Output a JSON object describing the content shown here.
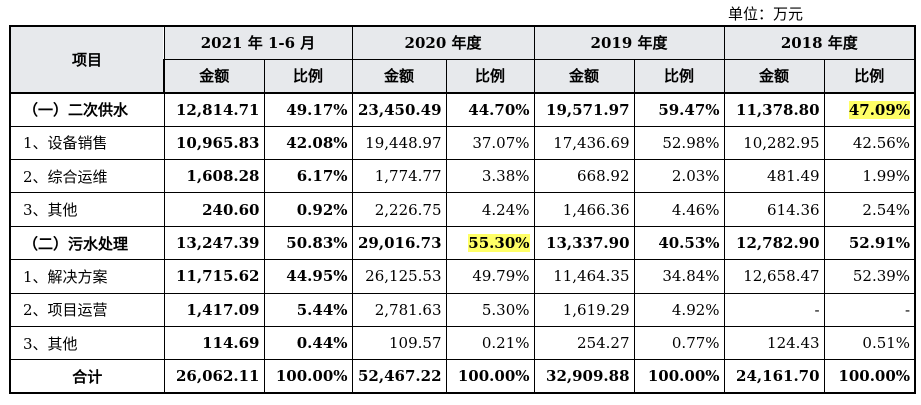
{
  "unit": "单位：万元",
  "header": {
    "item": "项目",
    "periods": [
      "2021 年 1-6 月",
      "2020 年度",
      "2019 年度",
      "2018 年度"
    ],
    "amount": "金额",
    "ratio": "比例"
  },
  "rows": [
    {
      "label": "（一）二次供水",
      "cells": [
        "12,814.71",
        "49.17%",
        "23,450.49",
        "44.70%",
        "19,571.97",
        "59.47%",
        "11,378.80",
        "47.09%"
      ]
    },
    {
      "label": "1、设备销售",
      "cells": [
        "10,965.83",
        "42.08%",
        "19,448.97",
        "37.07%",
        "17,436.69",
        "52.98%",
        "10,282.95",
        "42.56%"
      ]
    },
    {
      "label": "2、综合运维",
      "cells": [
        "1,608.28",
        "6.17%",
        "1,774.77",
        "3.38%",
        "668.92",
        "2.03%",
        "481.49",
        "1.99%"
      ]
    },
    {
      "label": "3、其他",
      "cells": [
        "240.60",
        "0.92%",
        "2,226.75",
        "4.24%",
        "1,466.36",
        "4.46%",
        "614.36",
        "2.54%"
      ]
    },
    {
      "label": "（二）污水处理",
      "cells": [
        "13,247.39",
        "50.83%",
        "29,016.73",
        "55.30%",
        "13,337.90",
        "40.53%",
        "12,782.90",
        "52.91%"
      ]
    },
    {
      "label": "1、解决方案",
      "cells": [
        "11,715.62",
        "44.95%",
        "26,125.53",
        "49.79%",
        "11,464.35",
        "34.84%",
        "12,658.47",
        "52.39%"
      ]
    },
    {
      "label": "2、项目运营",
      "cells": [
        "1,417.09",
        "5.44%",
        "2,781.63",
        "5.30%",
        "1,619.29",
        "4.92%",
        "-",
        "-"
      ]
    },
    {
      "label": "3、其他",
      "cells": [
        "114.69",
        "0.44%",
        "109.57",
        "0.21%",
        "254.27",
        "0.77%",
        "124.43",
        "0.51%"
      ]
    },
    {
      "label": "合计",
      "cells": [
        "26,062.11",
        "100.00%",
        "52,467.22",
        "100.00%",
        "32,909.88",
        "100.00%",
        "24,161.70",
        "100.00%"
      ]
    }
  ],
  "highlight_color": "#ffff66"
}
